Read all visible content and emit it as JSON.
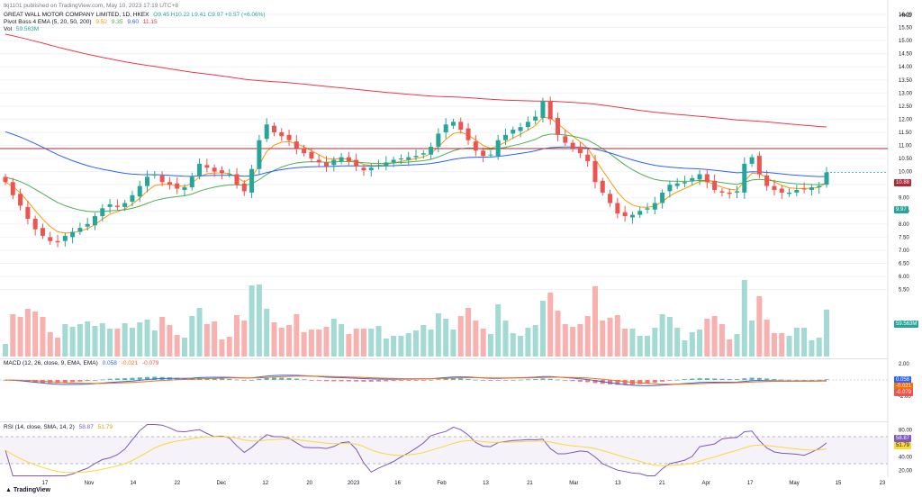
{
  "header": {
    "published": "tkj1101 published on TradingView.com, May 10, 2023 17:19 UTC+8",
    "symbol": "GREAT WALL MOTOR COMPANY LIMITED, 1D, HKEX",
    "ohlc": "O9.45  H10.22  L9.41  C9.97  +0.57 (+6.06%)",
    "indicator": "Pivot Boss 4 EMA (5, 20, 50, 200)",
    "indicator_values": [
      "9.52",
      "9.35",
      "9.60",
      "11.15"
    ],
    "vol_label": "Vol",
    "vol_value": "59.563M",
    "macd_label": "MACD (12, 26, close, 9, EMA, EMA)",
    "macd_values": [
      "0.058",
      "-0.021",
      "-0.079"
    ],
    "rsi_label": "RSI (14, close, SMA, 14, 2)",
    "rsi_values": [
      "58.87",
      "51.79"
    ],
    "currency": "HKD",
    "footer": "TradingView"
  },
  "colors": {
    "up": "#26a69a",
    "down": "#ef5350",
    "ema5": "#ff9800",
    "ema20": "#4caf50",
    "ema50": "#2962ff",
    "ema200": "#f23645",
    "resistance": "#b22833",
    "macd": "#2962ff",
    "signal": "#ff6d00",
    "rsi": "#7e57c2",
    "rsi_ma": "#fdd835"
  },
  "chart_data": {
    "type": "candlestick",
    "price_axis": [
      "16.00",
      "15.50",
      "15.00",
      "14.50",
      "14.00",
      "13.50",
      "13.00",
      "12.50",
      "12.00",
      "11.50",
      "11.00",
      "10.50",
      "10.00",
      "9.50",
      "9.00",
      "8.50",
      "8.00",
      "7.50",
      "7.00",
      "6.50",
      "6.00",
      "5.50"
    ],
    "price_tags": {
      "resistance": "10.88",
      "last": "9.97",
      "volume": "59.563M"
    },
    "macd_axis": [
      "2.00",
      "0.00",
      "-2.00"
    ],
    "macd_tags": [
      "0.058",
      "-0.021",
      "-0.079"
    ],
    "rsi_axis": [
      "80.00",
      "40.00",
      "20.00"
    ],
    "rsi_tags": [
      "58.87",
      "51.79"
    ],
    "x_labels": [
      "17",
      "Nov",
      "14",
      "22",
      "Dec",
      "12",
      "20",
      "2023",
      "16",
      "Feb",
      "13",
      "21",
      "Mar",
      "13",
      "21",
      "Apr",
      "17",
      "May",
      "15",
      "23"
    ],
    "resistance": 10.88,
    "closes": [
      9.6,
      9.1,
      8.7,
      8.2,
      7.8,
      7.55,
      7.35,
      7.3,
      7.55,
      7.7,
      7.85,
      8.0,
      8.3,
      8.6,
      8.75,
      8.65,
      8.8,
      9.1,
      9.45,
      9.8,
      9.9,
      9.6,
      9.5,
      9.35,
      9.4,
      9.8,
      10.3,
      10.15,
      10.0,
      9.95,
      9.9,
      9.5,
      9.25,
      10.1,
      11.2,
      11.8,
      11.5,
      11.35,
      11.2,
      10.9,
      10.7,
      10.5,
      10.35,
      10.2,
      10.45,
      10.55,
      10.4,
      10.2,
      10.05,
      10.15,
      10.25,
      10.35,
      10.45,
      10.5,
      10.55,
      10.6,
      10.7,
      10.95,
      11.45,
      11.8,
      11.9,
      11.6,
      11.2,
      10.8,
      10.6,
      10.65,
      11.2,
      11.4,
      11.6,
      11.7,
      11.9,
      12.1,
      12.7,
      12.0,
      11.4,
      11.1,
      10.9,
      10.7,
      10.4,
      9.6,
      9.2,
      8.8,
      8.4,
      8.3,
      8.35,
      8.5,
      8.6,
      8.8,
      9.2,
      9.5,
      9.55,
      9.6,
      9.75,
      9.9,
      9.6,
      9.3,
      9.2,
      9.15,
      9.25,
      10.3,
      10.55,
      9.9,
      9.45,
      9.3,
      9.2,
      9.2,
      9.3,
      9.35,
      9.4,
      9.45,
      9.97
    ],
    "series": [
      {
        "name": "EMA 5",
        "ref": "ema5"
      },
      {
        "name": "EMA 20",
        "ref": "ema20"
      },
      {
        "name": "EMA 50",
        "ref": "ema50"
      },
      {
        "name": "EMA 200",
        "ref": "ema200"
      }
    ]
  }
}
